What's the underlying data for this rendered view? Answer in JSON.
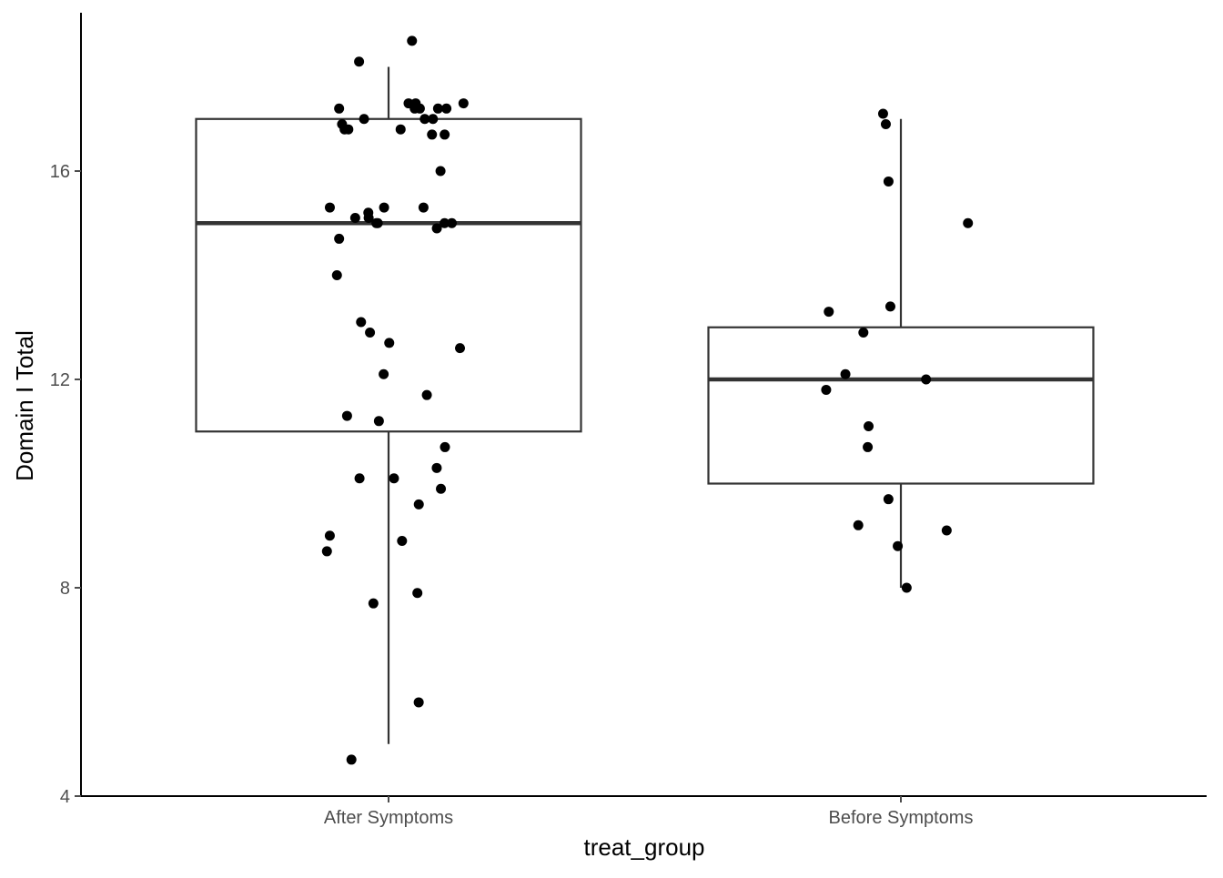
{
  "chart_data": {
    "type": "boxplot",
    "xlabel": "treat_group",
    "ylabel": "Domain I Total",
    "categories": [
      "After Symptoms",
      "Before Symptoms"
    ],
    "ylim": [
      4,
      19
    ],
    "yticks": [
      4,
      8,
      12,
      16
    ],
    "grid": false,
    "legend": "none",
    "colors": {
      "box": "#333333",
      "point": "#000000",
      "axis": "#000000",
      "tick_text": "#4d4d4d"
    },
    "boxes": [
      {
        "group": "After Symptoms",
        "min": 5,
        "q1": 11,
        "median": 15,
        "q3": 17,
        "max": 18
      },
      {
        "group": "Before Symptoms",
        "min": 8,
        "q1": 10,
        "median": 12,
        "q3": 13,
        "max": 17
      }
    ],
    "points": [
      {
        "group": "After Symptoms",
        "y": [
          18.5,
          18.1,
          17.3,
          17.3,
          17.3,
          17.2,
          17.2,
          17.2,
          17.2,
          17.2,
          17.0,
          17.0,
          17.0,
          16.9,
          16.8,
          16.8,
          16.8,
          16.7,
          16.7,
          16.0,
          15.3,
          15.3,
          15.3,
          15.2,
          15.1,
          15.1,
          15.0,
          15.0,
          15.0,
          15.0,
          14.9,
          14.7,
          14.0,
          13.1,
          12.9,
          12.7,
          12.6,
          12.1,
          11.7,
          11.3,
          11.2,
          10.7,
          10.3,
          10.1,
          10.1,
          9.9,
          9.6,
          9.0,
          8.9,
          8.7,
          7.9,
          7.7,
          5.8,
          4.7
        ]
      },
      {
        "group": "Before Symptoms",
        "y": [
          17.1,
          16.9,
          15.8,
          15.0,
          13.4,
          13.3,
          12.9,
          12.1,
          12.0,
          11.8,
          11.1,
          10.7,
          9.7,
          9.2,
          9.1,
          8.8,
          8.0
        ]
      }
    ]
  }
}
